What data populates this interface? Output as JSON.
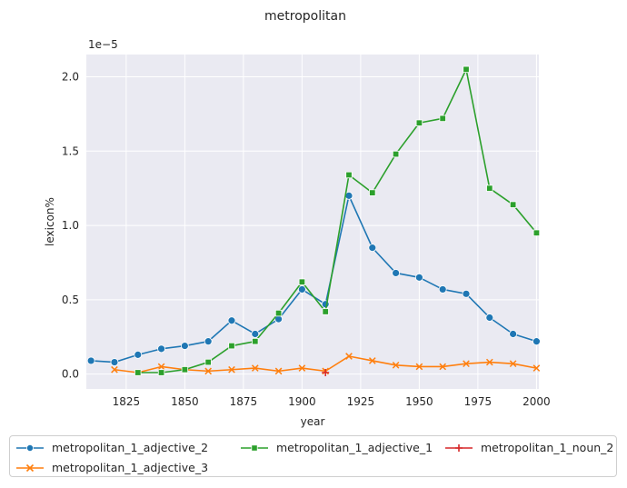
{
  "chart_data": {
    "type": "line",
    "title": "metropolitan",
    "xlabel": "year",
    "ylabel": "lexicon%",
    "offset_label": "1e−5",
    "xlim": [
      1808,
      2001
    ],
    "ylim": [
      -0.1,
      2.15
    ],
    "x_ticks": [
      1825,
      1850,
      1875,
      1900,
      1925,
      1950,
      1975,
      2000
    ],
    "y_ticks": [
      0.0,
      0.5,
      1.0,
      1.5,
      2.0
    ],
    "y_tick_labels": [
      "0.0",
      "0.5",
      "1.0",
      "1.5",
      "2.0"
    ],
    "grid": true,
    "legend_position": "bottom",
    "series": [
      {
        "name": "metropolitan_1_adjective_2",
        "color": "#1f77b4",
        "marker": "circle",
        "x": [
          1810,
          1820,
          1830,
          1840,
          1850,
          1860,
          1870,
          1880,
          1890,
          1900,
          1910,
          1920,
          1930,
          1940,
          1950,
          1960,
          1970,
          1980,
          1990,
          2000
        ],
        "y": [
          0.09,
          0.08,
          0.13,
          0.17,
          0.19,
          0.22,
          0.36,
          0.27,
          0.37,
          0.57,
          0.47,
          1.2,
          0.85,
          0.68,
          0.65,
          0.57,
          0.54,
          0.38,
          0.27,
          0.22
        ]
      },
      {
        "name": "metropolitan_1_adjective_3",
        "color": "#ff7f0e",
        "marker": "x",
        "x": [
          1820,
          1830,
          1840,
          1850,
          1860,
          1870,
          1880,
          1890,
          1900,
          1910,
          1920,
          1930,
          1940,
          1950,
          1960,
          1970,
          1980,
          1990,
          2000
        ],
        "y": [
          0.03,
          0.01,
          0.05,
          0.03,
          0.02,
          0.03,
          0.04,
          0.02,
          0.04,
          0.02,
          0.12,
          0.09,
          0.06,
          0.05,
          0.05,
          0.07,
          0.08,
          0.07,
          0.04
        ]
      },
      {
        "name": "metropolitan_1_adjective_1",
        "color": "#2ca02c",
        "marker": "square",
        "x": [
          1830,
          1840,
          1850,
          1860,
          1870,
          1880,
          1890,
          1900,
          1910,
          1920,
          1930,
          1940,
          1950,
          1960,
          1970,
          1980,
          1990,
          2000
        ],
        "y": [
          0.01,
          0.01,
          0.03,
          0.08,
          0.19,
          0.22,
          0.41,
          0.62,
          0.42,
          1.34,
          1.22,
          1.48,
          1.69,
          1.72,
          2.05,
          1.25,
          1.14,
          0.95
        ]
      },
      {
        "name": "metropolitan_1_noun_2",
        "color": "#d62728",
        "marker": "plus",
        "x": [
          1910
        ],
        "y": [
          0.01
        ]
      }
    ]
  }
}
